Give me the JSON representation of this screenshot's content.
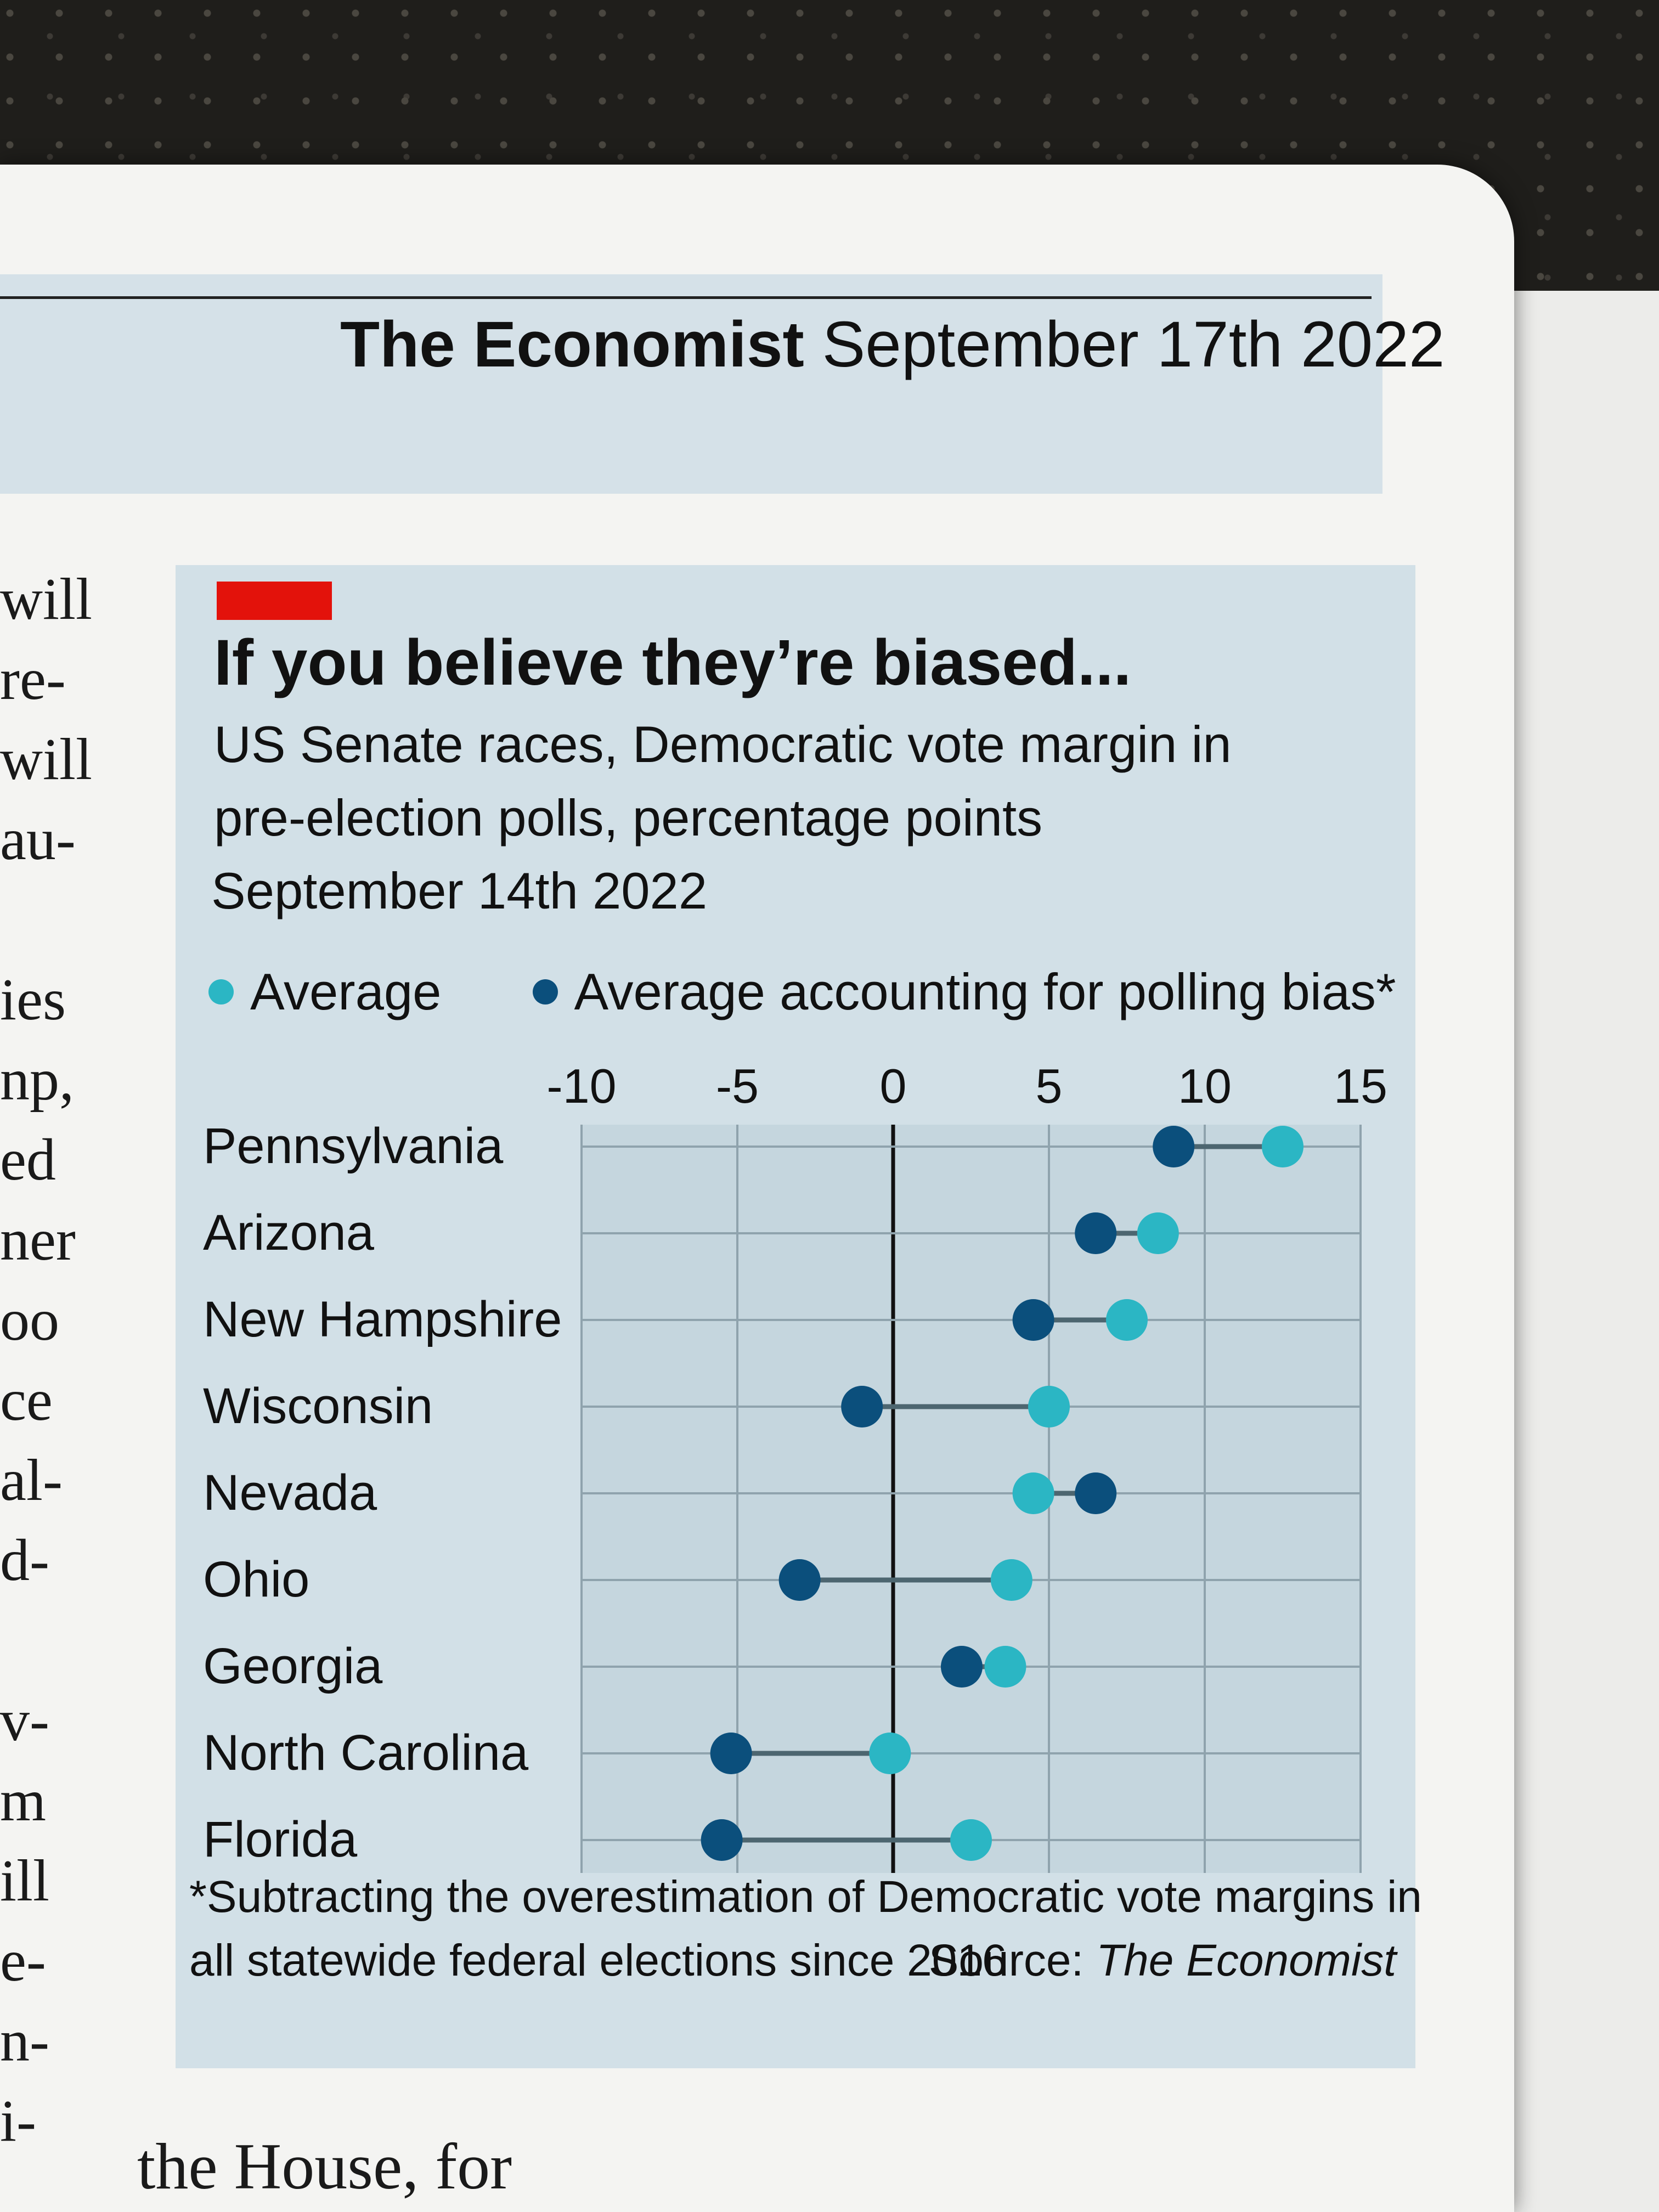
{
  "masthead": {
    "publication": "The Economist",
    "date": "September 17th 2022"
  },
  "left_column_fragments": [
    "will",
    "re-",
    "will",
    "au-",
    "",
    "ies",
    "np,",
    "ed",
    "ner",
    "oo",
    "ce",
    "al-",
    "d-",
    "",
    "v-",
    "m",
    "ill",
    "e-",
    "n-",
    "i-"
  ],
  "bottom_text": "the House, for",
  "chart_data": {
    "type": "dot-range",
    "title": "If you believe they’re biased...",
    "subtitle": "US Senate races, Democratic vote margin in pre-election polls, percentage points",
    "date": "September 14th 2022",
    "x_ticks": [
      -10,
      -5,
      0,
      5,
      10,
      15
    ],
    "x_tick_labels": [
      "-10",
      "-5",
      "0",
      "5",
      "10",
      "15"
    ],
    "xlim": [
      -10,
      15
    ],
    "grid": true,
    "legend_position": "top",
    "series": [
      {
        "name": "Average",
        "color": "#2bb6c4"
      },
      {
        "name": "Average accounting for polling bias*",
        "color": "#0b4f7c"
      }
    ],
    "categories": [
      "Pennsylvania",
      "Arizona",
      "New Hampshire",
      "Wisconsin",
      "Nevada",
      "Ohio",
      "Georgia",
      "North Carolina",
      "Florida"
    ],
    "average": [
      12.5,
      8.5,
      7.5,
      5.0,
      4.5,
      3.8,
      3.6,
      -0.1,
      2.5
    ],
    "bias_adjusted": [
      9.0,
      6.5,
      4.5,
      -1.0,
      6.5,
      -3.0,
      2.2,
      -5.2,
      -5.5
    ],
    "footnote": "*Subtracting the overestimation of Democratic vote margins in all statewide federal elections since 2016",
    "source_label": "Source: ",
    "source_name": "The Economist"
  }
}
